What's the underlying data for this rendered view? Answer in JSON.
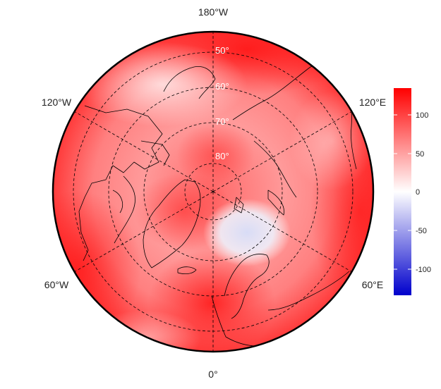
{
  "map": {
    "longitude_labels": {
      "top": "180°W",
      "bottom": "0°",
      "upper_left": "120°W",
      "upper_right": "120°E",
      "lower_left": "60°W",
      "lower_right": "60°E"
    },
    "latitude_labels": [
      "50°",
      "60°",
      "70°",
      "80°"
    ],
    "colorbar": {
      "colors": {
        "low": "#0000cc",
        "mid": "#ffffff",
        "high": "#ff0000"
      },
      "range": [
        -130,
        130
      ],
      "ticks": [
        "100",
        "50",
        "0",
        "-50",
        "-100"
      ]
    }
  }
}
